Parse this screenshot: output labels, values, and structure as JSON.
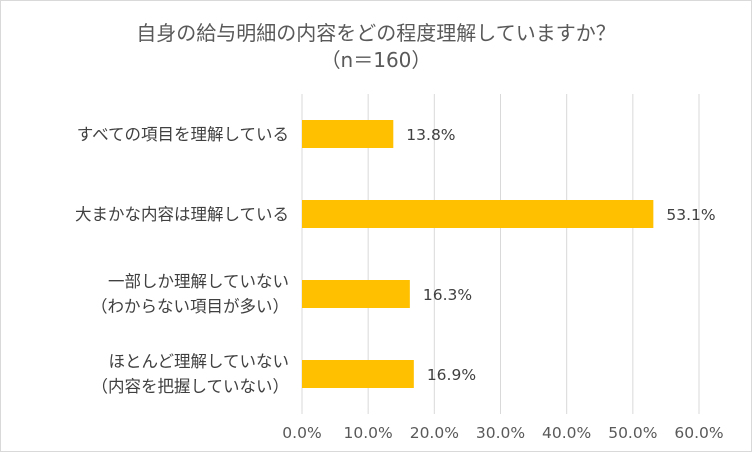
{
  "chart_data": {
    "type": "bar",
    "orientation": "horizontal",
    "title": "自身の給与明細の内容をどの程度理解していますか？",
    "subtitle": "（n＝160）",
    "categories": [
      [
        "すべての項目を理解している"
      ],
      [
        "大まかな内容は理解している"
      ],
      [
        "一部しか理解していない",
        "（わからない項目が多い）"
      ],
      [
        "ほとんど理解していない",
        "（内容を把握していない）"
      ]
    ],
    "values": [
      13.8,
      53.1,
      16.3,
      16.9
    ],
    "data_labels": [
      "13.8%",
      "53.1%",
      "16.3%",
      "16.9%"
    ],
    "xlim": [
      0,
      60
    ],
    "x_ticks": [
      0,
      10,
      20,
      30,
      40,
      50,
      60
    ],
    "x_tick_labels": [
      "0.0%",
      "10.0%",
      "20.0%",
      "30.0%",
      "40.0%",
      "50.0%",
      "60.0%"
    ],
    "grid": true,
    "legend": "none",
    "colors": {
      "bar": "#FFC000",
      "grid": "#d9d9d9",
      "text": "#595959"
    }
  }
}
